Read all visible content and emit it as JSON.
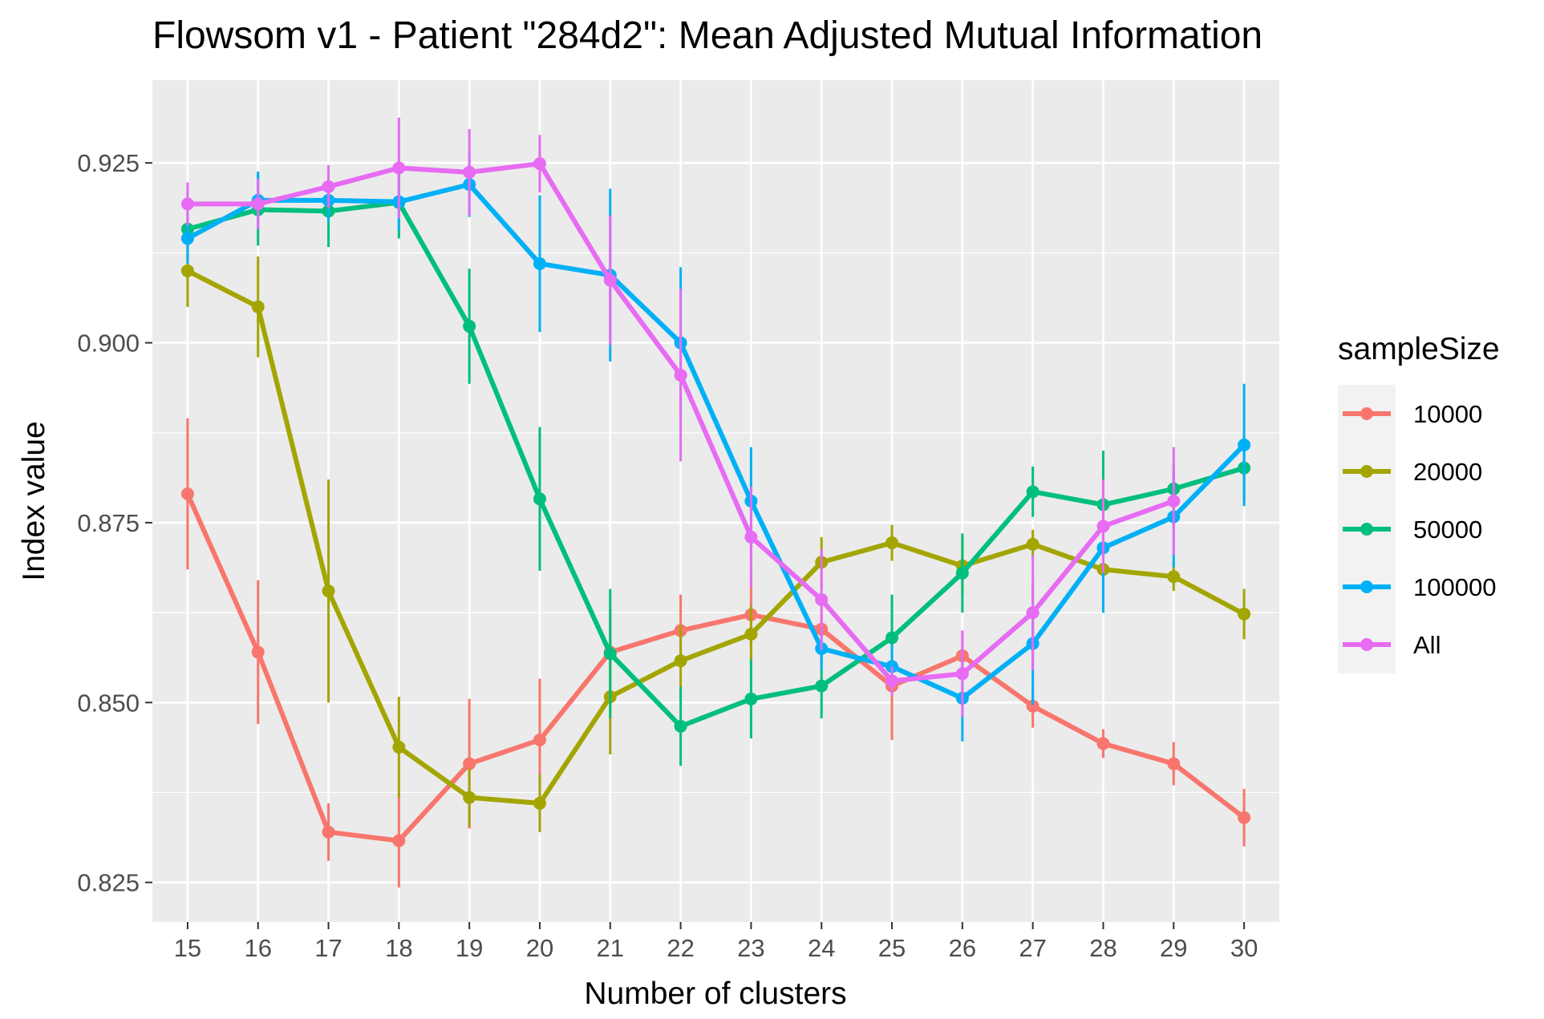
{
  "chart_data": {
    "type": "line",
    "title": "Flowsom v1 - Patient \"284d2\": Mean Adjusted Mutual Information",
    "xlabel": "Number of clusters",
    "ylabel": "Index value",
    "x": [
      15,
      16,
      17,
      18,
      19,
      20,
      21,
      22,
      23,
      24,
      25,
      26,
      27,
      28,
      29,
      30
    ],
    "xlim": [
      14.5,
      30.5
    ],
    "ylim": [
      0.8195,
      0.9365
    ],
    "yticks": [
      0.825,
      0.85,
      0.875,
      0.9,
      0.925
    ],
    "ytick_labels": [
      "0.825",
      "0.850",
      "0.875",
      "0.900",
      "0.925"
    ],
    "grid": true,
    "error_bars": true,
    "legend": {
      "title": "sampleSize",
      "position": "right"
    },
    "series": [
      {
        "name": "10000",
        "color": "#F8766D",
        "values": [
          0.879,
          0.857,
          0.832,
          0.8308,
          0.8415,
          0.8448,
          0.857,
          0.86,
          0.8622,
          0.8602,
          0.8523,
          0.8565,
          0.8495,
          0.8443,
          0.8415,
          0.834
        ],
        "err": [
          0.0105,
          0.01,
          0.004,
          0.0065,
          0.009,
          0.0085,
          0.006,
          0.005,
          0.006,
          0.005,
          0.0075,
          0.0035,
          0.003,
          0.002,
          0.003,
          0.004
        ]
      },
      {
        "name": "20000",
        "color": "#A3A500",
        "values": [
          0.91,
          0.905,
          0.8655,
          0.8438,
          0.8368,
          0.836,
          0.8508,
          0.8558,
          0.8595,
          0.8695,
          0.8722,
          0.869,
          0.872,
          0.8685,
          0.8675,
          0.8623
        ],
        "err": [
          0.005,
          0.007,
          0.0155,
          0.007,
          0.004,
          0.004,
          0.008,
          0.005,
          0.004,
          0.0035,
          0.0025,
          0.004,
          0.002,
          0.003,
          0.002,
          0.0035
        ]
      },
      {
        "name": "50000",
        "color": "#00BF7D",
        "values": [
          0.9158,
          0.9185,
          0.9183,
          0.9195,
          0.9023,
          0.8783,
          0.8568,
          0.8467,
          0.8505,
          0.8523,
          0.859,
          0.868,
          0.8793,
          0.8775,
          0.8797,
          0.8826
        ],
        "err": [
          0.004,
          0.005,
          0.005,
          0.005,
          0.008,
          0.01,
          0.009,
          0.0055,
          0.0055,
          0.0045,
          0.006,
          0.0055,
          0.0035,
          0.0075,
          0.0035,
          0.0045
        ]
      },
      {
        "name": "100000",
        "color": "#00B0F6",
        "values": [
          0.9145,
          0.9198,
          0.9198,
          0.9196,
          0.922,
          0.911,
          0.9094,
          0.9,
          0.878,
          0.8575,
          0.855,
          0.8506,
          0.8582,
          0.8715,
          0.8758,
          0.8858
        ],
        "err": [
          0.0035,
          0.004,
          0.003,
          0.004,
          0.0045,
          0.0095,
          0.012,
          0.0105,
          0.0075,
          0.003,
          0.003,
          0.006,
          0.0085,
          0.009,
          0.007,
          0.0085
        ]
      },
      {
        "name": "All",
        "color": "#E76BF3",
        "values": [
          0.9193,
          0.9193,
          0.9217,
          0.9243,
          0.9237,
          0.9249,
          0.9087,
          0.8955,
          0.873,
          0.8643,
          0.853,
          0.854,
          0.8625,
          0.8745,
          0.878,
          null
        ],
        "err": [
          0.003,
          0.0035,
          0.003,
          0.007,
          0.006,
          0.004,
          0.009,
          0.012,
          0.007,
          0.007,
          0.002,
          0.006,
          0.008,
          0.0065,
          0.0075,
          null
        ]
      }
    ]
  }
}
